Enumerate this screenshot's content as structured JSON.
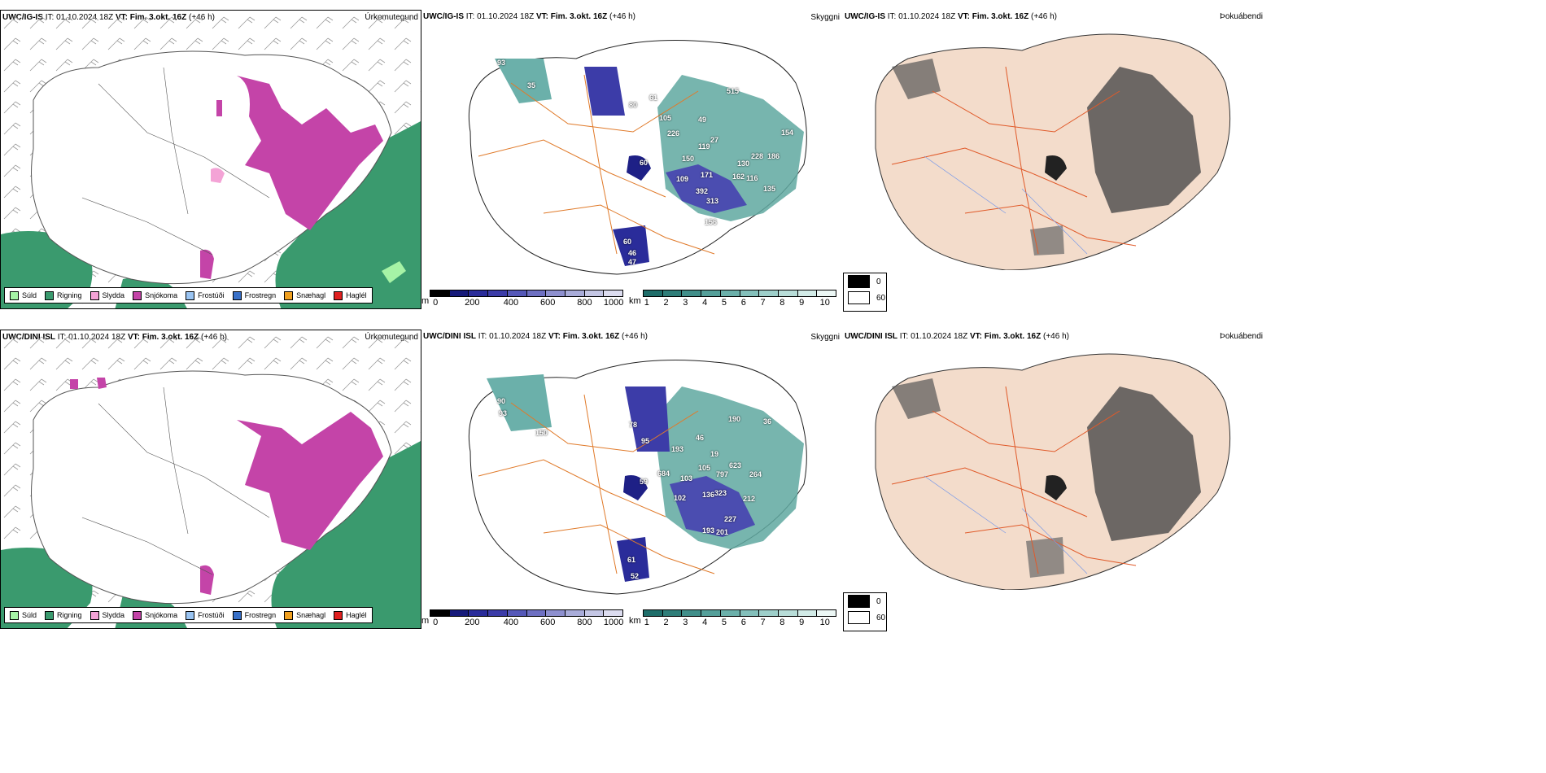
{
  "rows": [
    {
      "model": "UWC/IG-IS",
      "it_label": "IT:",
      "it_value": "01.10.2024 18Z",
      "vt_label": "VT:",
      "vt_value": "Fim. 3.okt. 16Z",
      "lead": "(+46 h)",
      "ceiling_numbers": [
        "93",
        "35",
        "80",
        "61",
        "105",
        "226",
        "49",
        "119",
        "27",
        "515",
        "150",
        "60",
        "109",
        "171",
        "162",
        "116",
        "392",
        "313",
        "228",
        "186",
        "156",
        "135",
        "154",
        "130",
        "60",
        "46",
        "47"
      ]
    },
    {
      "model": "UWC/DINI ISL",
      "it_label": "IT:",
      "it_value": "01.10.2024 18Z",
      "vt_label": "VT:",
      "vt_value": "Fim. 3.okt. 16Z",
      "lead": "(+46 h)",
      "ceiling_numbers": [
        "90",
        "93",
        "150",
        "78",
        "95",
        "193",
        "46",
        "19",
        "190",
        "105",
        "623",
        "684",
        "59",
        "103",
        "797",
        "102",
        "136",
        "323",
        "264",
        "212",
        "227",
        "193",
        "201",
        "61",
        "52",
        "36"
      ]
    }
  ],
  "panels": {
    "precip_type": "Úrkomutegund",
    "sky": "Skyggni",
    "fog": "Þokuábendi"
  },
  "precip_legend": [
    {
      "label": "Súld",
      "color": "#a6f3a6"
    },
    {
      "label": "Rigning",
      "color": "#3a9a6e"
    },
    {
      "label": "Slydda",
      "color": "#f4a3d6"
    },
    {
      "label": "Snjókoma",
      "color": "#c444a8"
    },
    {
      "label": "Frostúði",
      "color": "#9ac4f2"
    },
    {
      "label": "Frostregn",
      "color": "#3870c8"
    },
    {
      "label": "Snæhagl",
      "color": "#f0a020"
    },
    {
      "label": "Haglél",
      "color": "#e02020"
    }
  ],
  "ceiling_scale": {
    "unit": "m",
    "ticks": [
      "0",
      "200",
      "400",
      "600",
      "800",
      "1000"
    ],
    "colors": [
      "#000000",
      "#161a7a",
      "#2a2c9a",
      "#3c3ca8",
      "#5558b8",
      "#6e70c2",
      "#8e90cf",
      "#a9acd9",
      "#c4c6e4",
      "#dcdcef"
    ]
  },
  "visibility_scale": {
    "unit": "km",
    "ticks": [
      "1",
      "2",
      "3",
      "4",
      "5",
      "6",
      "7",
      "8",
      "9",
      "10"
    ],
    "colors": [
      "#1f6e6a",
      "#2f7e79",
      "#418f8a",
      "#55a09a",
      "#6bb0aa",
      "#84c0bb",
      "#9ecfca",
      "#b8ddd8",
      "#d2ebe7",
      "#ecf7f5"
    ]
  },
  "fog_legend": [
    {
      "value": "0",
      "color": "#000000"
    },
    {
      "value": "60",
      "color": "#ffffff"
    }
  ]
}
